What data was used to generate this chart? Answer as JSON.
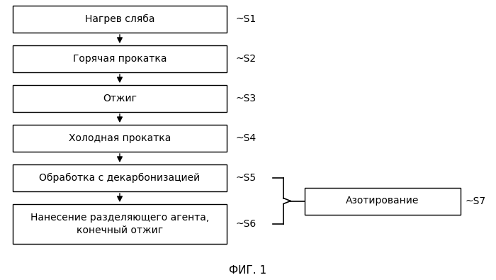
{
  "title": "ФИГ. 1",
  "background_color": "#ffffff",
  "boxes_left": [
    {
      "label": "Нагрев сляба",
      "tag": "~S1",
      "lines": 1
    },
    {
      "label": "Горячая прокатка",
      "tag": "~S2",
      "lines": 1
    },
    {
      "label": "Отжиг",
      "tag": "~S3",
      "lines": 1
    },
    {
      "label": "Холодная прокатка",
      "tag": "~S4",
      "lines": 1
    },
    {
      "label": "Обработка с декарбонизацией",
      "tag": "~S5",
      "lines": 1
    },
    {
      "label": "Нанесение разделяющего агента,\nконечный отжиг",
      "tag": "~S6",
      "lines": 2
    }
  ],
  "box_right": {
    "label": "Азотирование",
    "tag": "~S7"
  },
  "box_color": "#ffffff",
  "box_edge_color": "#000000",
  "text_color": "#000000",
  "arrow_color": "#000000",
  "font_size": 10,
  "tag_font_size": 10,
  "title_font_size": 11,
  "lw": 1.0
}
